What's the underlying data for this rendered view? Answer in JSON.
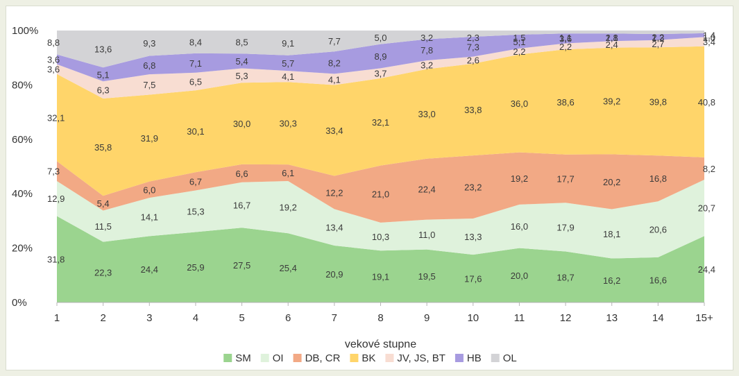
{
  "chart_data": {
    "type": "area",
    "stacked": true,
    "categories": [
      "1",
      "2",
      "3",
      "4",
      "5",
      "6",
      "7",
      "8",
      "9",
      "10",
      "11",
      "12",
      "13",
      "14",
      "15+"
    ],
    "xlabel": "vekové stupne",
    "ylabel": "",
    "ylim": [
      0,
      100
    ],
    "yticks": [
      "0%",
      "20%",
      "40%",
      "60%",
      "80%",
      "100%"
    ],
    "grid": false,
    "legend_position": "bottom",
    "series": [
      {
        "name": "SM",
        "color": "#9bd48f",
        "values": [
          31.8,
          22.3,
          24.4,
          25.9,
          27.5,
          25.4,
          20.9,
          19.1,
          19.5,
          17.6,
          20.0,
          18.7,
          16.2,
          16.6,
          24.4
        ],
        "labels": [
          "31,8",
          "22,3",
          "24,4",
          "25,9",
          "27,5",
          "25,4",
          "20,9",
          "19,1",
          "19,5",
          "17,6",
          "20,0",
          "18,7",
          "16,2",
          "16,6",
          "24,4"
        ]
      },
      {
        "name": "OI",
        "color": "#dff2dc",
        "values": [
          12.9,
          11.5,
          14.1,
          15.3,
          16.7,
          19.2,
          13.4,
          10.3,
          11.0,
          13.3,
          16.0,
          17.9,
          18.1,
          20.6,
          20.7
        ],
        "labels": [
          "12,9",
          "11,5",
          "14,1",
          "15,3",
          "16,7",
          "19,2",
          "13,4",
          "10,3",
          "11,0",
          "13,3",
          "16,0",
          "17,9",
          "18,1",
          "20,6",
          "20,7"
        ]
      },
      {
        "name": "DB, CR",
        "color": "#f2a985",
        "values": [
          7.3,
          5.4,
          6.0,
          6.7,
          6.6,
          6.1,
          12.2,
          21.0,
          22.4,
          23.2,
          19.2,
          17.7,
          20.2,
          16.8,
          8.2
        ],
        "labels": [
          "7,3",
          "5,4",
          "6,0",
          "6,7",
          "6,6",
          "6,1",
          "12,2",
          "21,0",
          "22,4",
          "23,2",
          "19,2",
          "17,7",
          "20,2",
          "16,8",
          "8,2"
        ]
      },
      {
        "name": "BK",
        "color": "#ffd56a",
        "values": [
          32.1,
          35.8,
          31.9,
          30.1,
          30.0,
          30.3,
          33.4,
          32.1,
          33.0,
          33.8,
          36.0,
          38.6,
          39.2,
          39.8,
          40.8
        ],
        "labels": [
          "32,1",
          "35,8",
          "31,9",
          "30,1",
          "30,0",
          "30,3",
          "33,4",
          "32,1",
          "33,0",
          "33,8",
          "36,0",
          "38,6",
          "39,2",
          "39,8",
          "40,8"
        ]
      },
      {
        "name": "JV, JS, BT",
        "color": "#f8ddd2",
        "values": [
          3.6,
          6.3,
          7.5,
          6.5,
          5.3,
          4.1,
          4.1,
          3.7,
          3.2,
          2.6,
          2.2,
          2.2,
          2.4,
          2.7,
          3.4
        ],
        "labels": [
          "3,6",
          "6,3",
          "7,5",
          "6,5",
          "5,3",
          "4,1",
          "4,1",
          "3,7",
          "3,2",
          "2,6",
          "2,2",
          "2,2",
          "2,4",
          "2,7",
          "3,4"
        ]
      },
      {
        "name": "HB",
        "color": "#a79be0",
        "values": [
          3.6,
          5.1,
          6.8,
          7.1,
          5.4,
          5.7,
          8.2,
          8.9,
          7.8,
          7.3,
          5.1,
          3.6,
          2.8,
          2.2,
          1.4
        ],
        "labels": [
          "3,6",
          "5,1",
          "6,8",
          "7,1",
          "5,4",
          "5,7",
          "8,2",
          "8,9",
          "7,8",
          "7,3",
          "5,1",
          "3,6",
          "2,8",
          "2,2",
          "1,4"
        ]
      },
      {
        "name": "OL",
        "color": "#d3d3d6",
        "values": [
          8.8,
          13.6,
          9.3,
          8.4,
          8.5,
          9.1,
          7.7,
          5.0,
          3.2,
          2.3,
          1.5,
          1.1,
          1.1,
          1.3,
          1.0
        ],
        "labels": [
          "8,8",
          "13,6",
          "9,3",
          "8,4",
          "8,5",
          "9,1",
          "7,7",
          "5,0",
          "3,2",
          "2,3",
          "1,5",
          "1,1",
          "1,1",
          "1,3",
          "1,0"
        ]
      }
    ]
  }
}
